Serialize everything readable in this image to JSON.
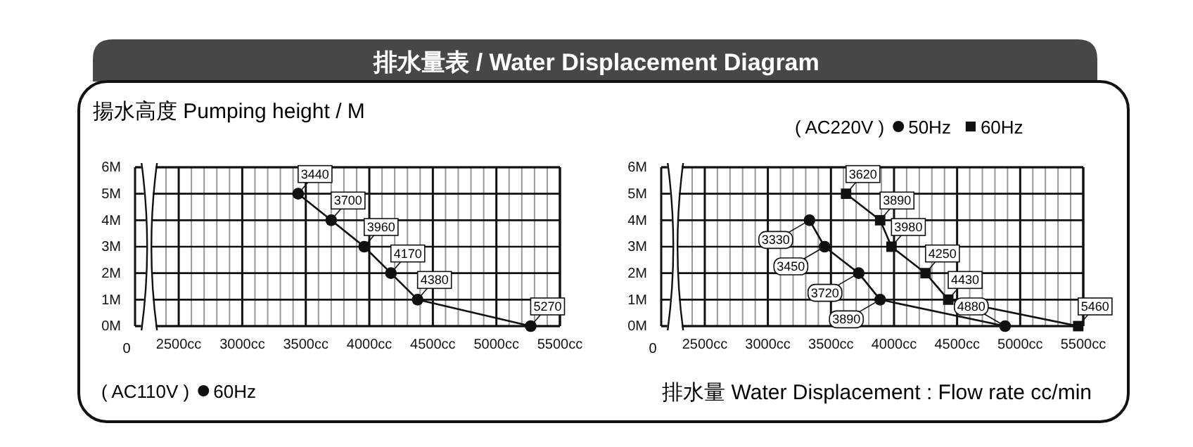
{
  "chart_data": [
    {
      "type": "line",
      "title": "排水量表 / Water Displacement Diagram",
      "ylabel": "揚水高度 Pumping height / M",
      "legend_title": "( AC110V )",
      "legend": "bottom left",
      "grid": true,
      "line_style": "solid",
      "xlim": [
        2400,
        5500
      ],
      "ylim": [
        0,
        6
      ],
      "marker": "circle",
      "xticks": [
        {
          "value": 2400,
          "label": null
        },
        {
          "value": 2500,
          "label": "2500cc"
        },
        {
          "value": 2600,
          "label": null
        },
        {
          "value": 2700,
          "label": null
        },
        {
          "value": 2800,
          "label": null
        },
        {
          "value": 2900,
          "label": null
        },
        {
          "value": 3000,
          "label": "3000cc"
        },
        {
          "value": 3100,
          "label": null
        },
        {
          "value": 3200,
          "label": null
        },
        {
          "value": 3300,
          "label": null
        },
        {
          "value": 3400,
          "label": null
        },
        {
          "value": 3500,
          "label": "3500cc"
        },
        {
          "value": 3600,
          "label": null
        },
        {
          "value": 3700,
          "label": null
        },
        {
          "value": 3800,
          "label": null
        },
        {
          "value": 3900,
          "label": null
        },
        {
          "value": 4000,
          "label": "4000cc"
        },
        {
          "value": 4100,
          "label": null
        },
        {
          "value": 4200,
          "label": null
        },
        {
          "value": 4300,
          "label": null
        },
        {
          "value": 4400,
          "label": null
        },
        {
          "value": 4500,
          "label": "4500cc"
        },
        {
          "value": 4600,
          "label": null
        },
        {
          "value": 4700,
          "label": null
        },
        {
          "value": 4800,
          "label": null
        },
        {
          "value": 4900,
          "label": null
        },
        {
          "value": 5000,
          "label": "5000cc"
        },
        {
          "value": 5100,
          "label": null
        },
        {
          "value": 5200,
          "label": null
        },
        {
          "value": 5300,
          "label": null
        },
        {
          "value": 5400,
          "label": null
        },
        {
          "value": 5500,
          "label": "5500cc"
        }
      ],
      "yticks": [
        {
          "value": 0,
          "label": "0M"
        },
        {
          "value": 1,
          "label": "1M"
        },
        {
          "value": 2,
          "label": "2M"
        },
        {
          "value": 3,
          "label": "3M"
        },
        {
          "value": 4,
          "label": "4M"
        },
        {
          "value": 5,
          "label": "5M"
        },
        {
          "value": 6,
          "label": "6M"
        }
      ],
      "series": [
        {
          "name": "60Hz",
          "color": "#111111",
          "x": [
            3440,
            3700,
            3960,
            4170,
            4380,
            5270
          ],
          "values": [
            5,
            4,
            3,
            2,
            1,
            0
          ]
        }
      ],
      "annotations": [
        "0",
        {
          "text": "3440",
          "x": 3440,
          "y": 5
        },
        {
          "text": "3700",
          "x": 3700,
          "y": 4
        },
        {
          "text": "3960",
          "x": 3960,
          "y": 3
        },
        {
          "text": "4170",
          "x": 4170,
          "y": 2
        },
        {
          "text": "4380",
          "x": 4380,
          "y": 1
        },
        {
          "text": "5270",
          "x": 5270,
          "y": 0
        }
      ]
    },
    {
      "type": "line",
      "xlabel": "排水量  Water Displacement : Flow rate  cc/min",
      "legend_title": "( AC220V )",
      "legend": "top right",
      "grid": true,
      "line_style": "solid",
      "xlim": [
        2400,
        5500
      ],
      "ylim": [
        0,
        6
      ],
      "xticks": [
        {
          "value": 2400,
          "label": null
        },
        {
          "value": 2500,
          "label": "2500cc"
        },
        {
          "value": 2600,
          "label": null
        },
        {
          "value": 2700,
          "label": null
        },
        {
          "value": 2800,
          "label": null
        },
        {
          "value": 2900,
          "label": null
        },
        {
          "value": 3000,
          "label": "3000cc"
        },
        {
          "value": 3100,
          "label": null
        },
        {
          "value": 3200,
          "label": null
        },
        {
          "value": 3300,
          "label": null
        },
        {
          "value": 3400,
          "label": null
        },
        {
          "value": 3500,
          "label": "3500cc"
        },
        {
          "value": 3600,
          "label": null
        },
        {
          "value": 3700,
          "label": null
        },
        {
          "value": 3800,
          "label": null
        },
        {
          "value": 3900,
          "label": null
        },
        {
          "value": 4000,
          "label": "4000cc"
        },
        {
          "value": 4100,
          "label": null
        },
        {
          "value": 4200,
          "label": null
        },
        {
          "value": 4300,
          "label": null
        },
        {
          "value": 4400,
          "label": null
        },
        {
          "value": 4500,
          "label": "4500cc"
        },
        {
          "value": 4600,
          "label": null
        },
        {
          "value": 4700,
          "label": null
        },
        {
          "value": 4800,
          "label": null
        },
        {
          "value": 4900,
          "label": null
        },
        {
          "value": 5000,
          "label": "5000cc"
        },
        {
          "value": 5100,
          "label": null
        },
        {
          "value": 5200,
          "label": null
        },
        {
          "value": 5300,
          "label": null
        },
        {
          "value": 5400,
          "label": null
        },
        {
          "value": 5500,
          "label": "5500cc"
        }
      ],
      "yticks": [
        {
          "value": 0,
          "label": "0M"
        },
        {
          "value": 1,
          "label": "1M"
        },
        {
          "value": 2,
          "label": "2M"
        },
        {
          "value": 3,
          "label": "3M"
        },
        {
          "value": 4,
          "label": "4M"
        },
        {
          "value": 5,
          "label": "5M"
        },
        {
          "value": 6,
          "label": "6M"
        }
      ],
      "series": [
        {
          "name": "50Hz",
          "color": "#111111",
          "marker": "circle",
          "x": [
            3330,
            3450,
            3720,
            3890,
            4880
          ],
          "values": [
            4,
            3,
            2,
            1,
            0
          ]
        },
        {
          "name": "60Hz",
          "color": "#111111",
          "marker": "square",
          "x": [
            3620,
            3890,
            3980,
            4250,
            4430,
            5460
          ],
          "values": [
            5,
            4,
            3,
            2,
            1,
            0
          ]
        }
      ],
      "annotations": [
        "0",
        {
          "text": "3330",
          "x": 3330,
          "y": 4
        },
        {
          "text": "3450",
          "x": 3450,
          "y": 3
        },
        {
          "text": "3720",
          "x": 3720,
          "y": 2
        },
        {
          "text": "3890",
          "x": 3890,
          "y": 1
        },
        {
          "text": "4880",
          "x": 4880,
          "y": 0
        },
        {
          "text": "3620",
          "x": 3620,
          "y": 5
        },
        {
          "text": "3890",
          "x": 3890,
          "y": 4
        },
        {
          "text": "3980",
          "x": 3980,
          "y": 3
        },
        {
          "text": "4250",
          "x": 4250,
          "y": 2
        },
        {
          "text": "4430",
          "x": 4430,
          "y": 1
        },
        {
          "text": "5460",
          "x": 5460,
          "y": 0
        }
      ]
    }
  ]
}
